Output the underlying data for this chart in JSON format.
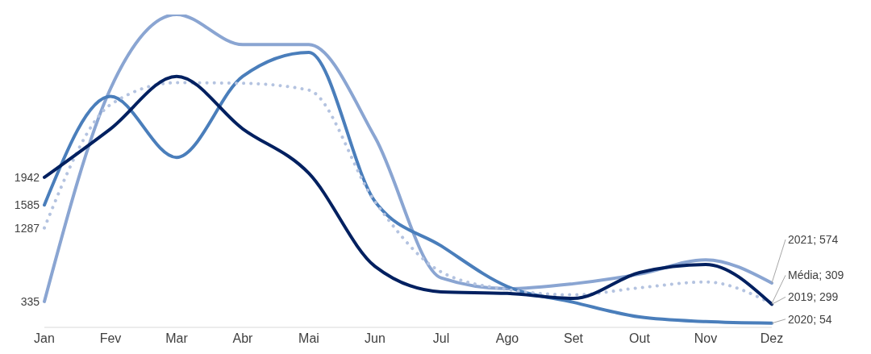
{
  "chart_data": {
    "type": "line",
    "categories": [
      "Jan",
      "Fev",
      "Mar",
      "Abr",
      "Mai",
      "Jun",
      "Jul",
      "Ago",
      "Set",
      "Out",
      "Nov",
      "Dez"
    ],
    "marker": "none",
    "series": [
      {
        "color": "#8aa5d2",
        "values": [
          335,
          3090,
          4050,
          3660,
          3660,
          2460,
          640,
          500,
          565,
          690,
          875,
          574
        ],
        "value_labels": [
          "335",
          null,
          null,
          null,
          null,
          null,
          null,
          null,
          null,
          null,
          null,
          null
        ]
      },
      {
        "color": "#4a7ebb",
        "values": [
          1585,
          2990,
          2200,
          3250,
          3560,
          1630,
          1055,
          530,
          325,
          135,
          75,
          54
        ],
        "value_labels": [
          "1585",
          null,
          null,
          null,
          null,
          null,
          null,
          null,
          null,
          null,
          null,
          null
        ]
      },
      {
        "color": "#b4c3e0",
        "line_style": "dotted",
        "values": [
          1287,
          2883,
          3167,
          3160,
          3071,
          1627,
          718,
          490,
          422,
          512,
          588,
          309
        ],
        "value_labels": [
          "1287",
          null,
          null,
          null,
          null,
          null,
          null,
          null,
          null,
          null,
          null,
          null
        ]
      },
      {
        "color": "#002060",
        "values": [
          1942,
          2570,
          3250,
          2570,
          1994,
          790,
          460,
          440,
          375,
          710,
          815,
          299
        ],
        "value_labels": [
          "1942",
          null,
          null,
          null,
          null,
          null,
          null,
          null,
          null,
          null,
          null,
          null
        ]
      }
    ],
    "annotations": [
      {
        "text": "2021; 574",
        "x": "Dez",
        "y": 574
      },
      {
        "text": "Média; 309",
        "x": "Dez",
        "y": 309
      },
      {
        "text": "2019; 299",
        "x": "Dez",
        "y": 299
      },
      {
        "text": "2020; 54",
        "x": "Dez",
        "y": 54
      }
    ]
  }
}
